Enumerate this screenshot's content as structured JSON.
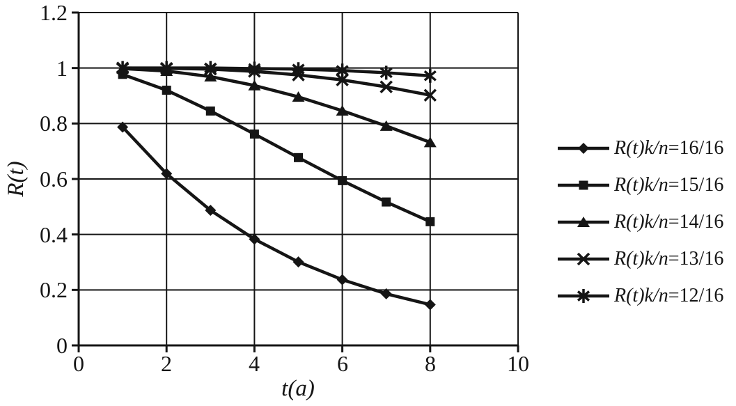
{
  "figure": {
    "background": "#ffffff",
    "ink_color": "#151515"
  },
  "chart_data": {
    "type": "line",
    "title": "",
    "xlabel": "t(a)",
    "ylabel": "R(t)",
    "xlim": [
      0,
      10
    ],
    "ylim": [
      0,
      1.2
    ],
    "grid": true,
    "legend_position": "right-outside",
    "x_tick_labels": [
      "0",
      "2",
      "4",
      "6",
      "8",
      "10"
    ],
    "y_tick_labels": [
      "1.2",
      "1",
      "0.8",
      "0.6",
      "0.4",
      "0.2",
      "0"
    ],
    "x": [
      1,
      2,
      3,
      4,
      5,
      6,
      7,
      8
    ],
    "series": [
      {
        "name": "R(t)k/n=16/16",
        "legend_italic": "R(t)k/n",
        "legend_rest": "=16/16",
        "marker": "diamond",
        "color": "#151515",
        "values": [
          0.787,
          0.619,
          0.487,
          0.383,
          0.301,
          0.237,
          0.186,
          0.147
        ]
      },
      {
        "name": "R(t)k/n=15/16",
        "legend_italic": "R(t)k/n",
        "legend_rest": "=15/16",
        "marker": "square",
        "color": "#151515",
        "values": [
          0.977,
          0.92,
          0.845,
          0.762,
          0.677,
          0.594,
          0.517,
          0.446
        ]
      },
      {
        "name": "R(t)k/n=14/16",
        "legend_italic": "R(t)k/n",
        "legend_rest": "=14/16",
        "marker": "triangle",
        "color": "#151515",
        "values": [
          0.998,
          0.989,
          0.969,
          0.937,
          0.896,
          0.846,
          0.791,
          0.732
        ]
      },
      {
        "name": "R(t)k/n=13/16",
        "legend_italic": "R(t)k/n",
        "legend_rest": "=13/16",
        "marker": "x",
        "color": "#151515",
        "values": [
          1.0,
          0.999,
          0.996,
          0.988,
          0.975,
          0.957,
          0.932,
          0.902
        ]
      },
      {
        "name": "R(t)k/n=12/16",
        "legend_italic": "R(t)k/n",
        "legend_rest": "=12/16",
        "marker": "asterisk",
        "color": "#151515",
        "values": [
          1.0,
          1.0,
          1.0,
          0.998,
          0.996,
          0.991,
          0.983,
          0.972
        ]
      }
    ]
  }
}
